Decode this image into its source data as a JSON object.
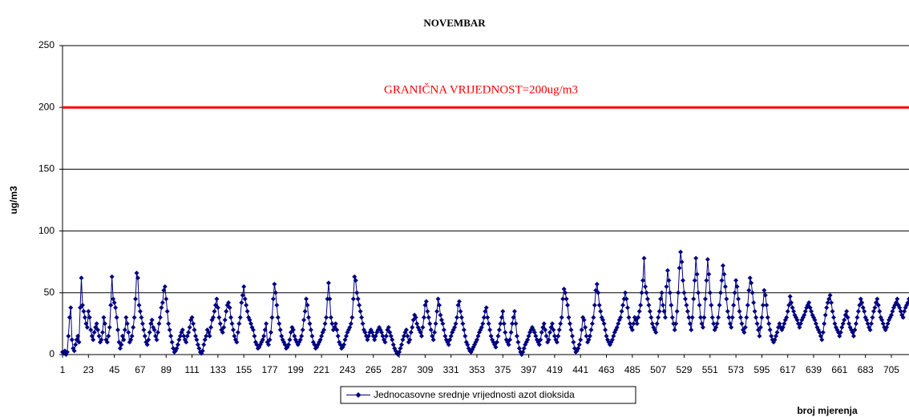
{
  "chart_data": {
    "type": "line",
    "title": "NOVEMBAR",
    "ylabel": "ug/m3",
    "xlabel": "broj mjerenja",
    "xlim": [
      1,
      720
    ],
    "xticks": [
      1,
      23,
      45,
      67,
      89,
      111,
      133,
      155,
      177,
      199,
      221,
      243,
      265,
      287,
      309,
      331,
      353,
      375,
      397,
      419,
      441,
      463,
      485,
      507,
      529,
      551,
      573,
      595,
      617,
      639,
      661,
      683,
      705
    ],
    "ylim": [
      0,
      250
    ],
    "yticks": [
      0,
      50,
      100,
      150,
      200,
      250
    ],
    "grid": true,
    "reference_line": {
      "value": 200,
      "color": "#ff0000",
      "label": "GRANIČNA VRIJEDNOST=200ug/m3"
    },
    "series": [
      {
        "name": "Jednocasovne srednje vrijednosti azot dioksida",
        "color": "#000080",
        "values": [
          2,
          1,
          3,
          0,
          2,
          15,
          30,
          38,
          12,
          5,
          3,
          8,
          12,
          15,
          10,
          38,
          62,
          40,
          35,
          30,
          25,
          22,
          35,
          30,
          20,
          15,
          12,
          18,
          22,
          25,
          20,
          15,
          10,
          12,
          18,
          30,
          25,
          12,
          10,
          15,
          22,
          40,
          63,
          45,
          42,
          38,
          30,
          20,
          10,
          5,
          8,
          15,
          12,
          20,
          30,
          25,
          18,
          10,
          12,
          15,
          22,
          30,
          45,
          66,
          62,
          40,
          35,
          30,
          25,
          20,
          15,
          10,
          8,
          12,
          18,
          25,
          28,
          22,
          20,
          15,
          12,
          18,
          25,
          30,
          38,
          42,
          52,
          55,
          45,
          35,
          25,
          20,
          15,
          10,
          5,
          2,
          3,
          5,
          8,
          12,
          15,
          18,
          20,
          15,
          12,
          10,
          15,
          18,
          22,
          28,
          30,
          25,
          20,
          15,
          12,
          8,
          5,
          2,
          1,
          3,
          8,
          12,
          15,
          20,
          18,
          15,
          22,
          28,
          30,
          35,
          40,
          45,
          38,
          30,
          25,
          20,
          18,
          22,
          28,
          35,
          40,
          42,
          38,
          30,
          25,
          20,
          15,
          12,
          10,
          18,
          25,
          30,
          42,
          48,
          55,
          45,
          40,
          35,
          30,
          28,
          25,
          22,
          20,
          15,
          10,
          8,
          5,
          6,
          8,
          10,
          12,
          15,
          20,
          25,
          10,
          8,
          12,
          18,
          30,
          45,
          57,
          50,
          40,
          30,
          25,
          20,
          15,
          12,
          10,
          8,
          5,
          6,
          8,
          12,
          18,
          22,
          20,
          15,
          12,
          10,
          8,
          10,
          12,
          15,
          20,
          28,
          35,
          45,
          40,
          30,
          25,
          20,
          15,
          10,
          8,
          5,
          6,
          8,
          10,
          12,
          15,
          18,
          20,
          25,
          30,
          45,
          58,
          45,
          30,
          25,
          20,
          22,
          25,
          20,
          15,
          10,
          8,
          5,
          6,
          8,
          12,
          15,
          18,
          20,
          22,
          25,
          30,
          45,
          63,
          60,
          50,
          45,
          40,
          35,
          30,
          25,
          20,
          18,
          15,
          12,
          15,
          18,
          20,
          18,
          15,
          12,
          15,
          18,
          20,
          22,
          20,
          18,
          15,
          12,
          10,
          15,
          20,
          22,
          18,
          15,
          12,
          8,
          5,
          3,
          1,
          0,
          2,
          5,
          8,
          12,
          15,
          18,
          20,
          15,
          10,
          12,
          18,
          22,
          28,
          32,
          30,
          25,
          22,
          20,
          18,
          15,
          22,
          30,
          40,
          43,
          35,
          30,
          25,
          20,
          15,
          12,
          18,
          25,
          35,
          45,
          40,
          32,
          28,
          25,
          20,
          15,
          12,
          10,
          8,
          12,
          15,
          18,
          20,
          22,
          25,
          30,
          40,
          43,
          35,
          30,
          25,
          20,
          15,
          10,
          8,
          5,
          3,
          2,
          4,
          6,
          8,
          10,
          12,
          15,
          18,
          20,
          22,
          25,
          30,
          35,
          38,
          30,
          25,
          20,
          15,
          12,
          10,
          8,
          6,
          10,
          15,
          20,
          25,
          30,
          35,
          25,
          18,
          12,
          10,
          8,
          12,
          18,
          25,
          30,
          35,
          25,
          15,
          10,
          5,
          2,
          0,
          2,
          5,
          8,
          10,
          12,
          15,
          18,
          20,
          22,
          20,
          18,
          15,
          12,
          10,
          8,
          12,
          18,
          22,
          25,
          20,
          15,
          10,
          12,
          18,
          22,
          25,
          20,
          15,
          12,
          10,
          15,
          20,
          25,
          30,
          45,
          53,
          50,
          45,
          40,
          30,
          25,
          20,
          15,
          10,
          5,
          2,
          3,
          5,
          8,
          12,
          20,
          30,
          28,
          22,
          15,
          10,
          12,
          15,
          20,
          25,
          30,
          40,
          52,
          57,
          50,
          40,
          35,
          30,
          28,
          25,
          20,
          15,
          12,
          10,
          8,
          10,
          12,
          15,
          18,
          20,
          22,
          25,
          28,
          30,
          35,
          40,
          45,
          50,
          45,
          38,
          30,
          25,
          22,
          20,
          25,
          30,
          28,
          25,
          30,
          35,
          40,
          50,
          60,
          78,
          55,
          50,
          45,
          40,
          35,
          30,
          25,
          22,
          20,
          18,
          25,
          30,
          35,
          45,
          50,
          40,
          35,
          30,
          55,
          68,
          60,
          50,
          40,
          30,
          25,
          20,
          25,
          35,
          50,
          70,
          83,
          75,
          60,
          50,
          45,
          40,
          35,
          30,
          25,
          20,
          30,
          45,
          60,
          78,
          65,
          50,
          40,
          30,
          25,
          22,
          30,
          45,
          60,
          77,
          65,
          50,
          40,
          30,
          25,
          20,
          22,
          25,
          30,
          40,
          50,
          60,
          72,
          65,
          55,
          45,
          35,
          30,
          25,
          22,
          30,
          40,
          50,
          60,
          55,
          45,
          35,
          30,
          25,
          20,
          18,
          22,
          30,
          40,
          52,
          62,
          58,
          50,
          42,
          35,
          30,
          25,
          20,
          15,
          22,
          30,
          40,
          52,
          48,
          40,
          30,
          25,
          20,
          15,
          12,
          10,
          12,
          15,
          18,
          22,
          25,
          22,
          20,
          22,
          25,
          28,
          30,
          35,
          40,
          47,
          42,
          38,
          35,
          32,
          30,
          28,
          25,
          22,
          25,
          28,
          30,
          32,
          35,
          38,
          40,
          42,
          38,
          35,
          32,
          30,
          28,
          25,
          22,
          20,
          18,
          15,
          12,
          18,
          25,
          32,
          38,
          42,
          45,
          48,
          42,
          35,
          30,
          25,
          22,
          20,
          18,
          15,
          18,
          22,
          25,
          28,
          32,
          35,
          30,
          25,
          22,
          20,
          18,
          15,
          20,
          25,
          30,
          35,
          40,
          45,
          42,
          38,
          35,
          30,
          28,
          25,
          22,
          20,
          25,
          30,
          35,
          38,
          42,
          45,
          40,
          35,
          30,
          28,
          25,
          22,
          20,
          22,
          25,
          28,
          30,
          32,
          35,
          38,
          40,
          42,
          45,
          40,
          38,
          35,
          32,
          30,
          35,
          38,
          40,
          42,
          45
        ]
      }
    ]
  }
}
